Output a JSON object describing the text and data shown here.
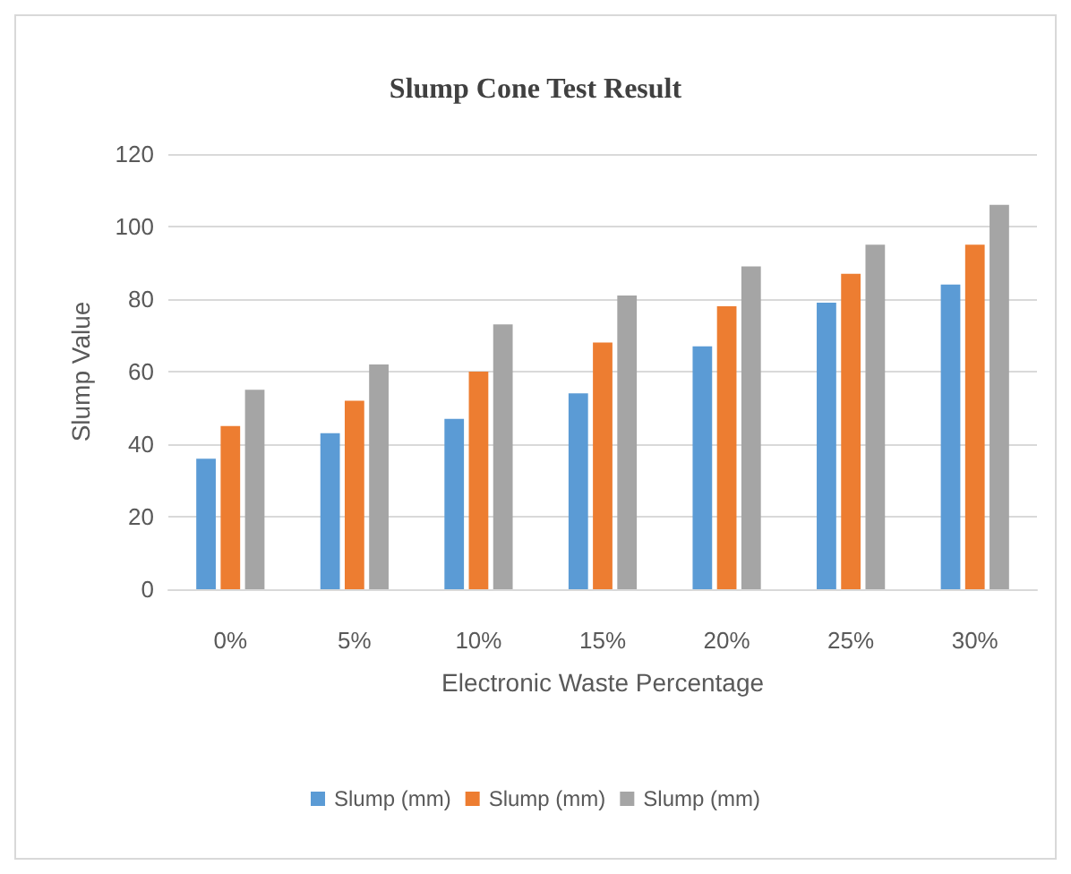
{
  "chart_data": {
    "type": "bar",
    "title": "Slump Cone Test Result",
    "xlabel": "Electronic Waste Percentage",
    "ylabel": "Slump Value",
    "categories": [
      "0%",
      "5%",
      "10%",
      "15%",
      "20%",
      "25%",
      "30%"
    ],
    "series": [
      {
        "name": "Slump (mm)",
        "color": "#5b9bd5",
        "values": [
          36,
          43,
          47,
          54,
          67,
          79,
          84
        ]
      },
      {
        "name": "Slump (mm)",
        "color": "#ed7d31",
        "values": [
          45,
          52,
          60,
          68,
          78,
          87,
          95
        ]
      },
      {
        "name": "Slump (mm)",
        "color": "#a5a5a5",
        "values": [
          55,
          62,
          73,
          81,
          89,
          95,
          106
        ]
      }
    ],
    "ylim": [
      0,
      120
    ],
    "yticks": [
      0,
      20,
      40,
      60,
      80,
      100,
      120
    ],
    "grid": "y",
    "legend": "bottom"
  }
}
